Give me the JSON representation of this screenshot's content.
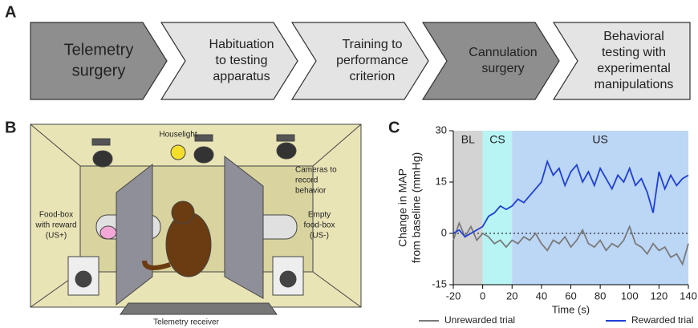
{
  "panel_a": {
    "label": "A",
    "steps": [
      {
        "lines": [
          "Telemetry",
          "surgery"
        ],
        "fill": "#8e8e8e"
      },
      {
        "lines": [
          "Habituation",
          "to testing",
          "apparatus"
        ],
        "fill": "#e4e4e4"
      },
      {
        "lines": [
          "Training to",
          "performance",
          "criterion"
        ],
        "fill": "#e4e4e4"
      },
      {
        "lines": [
          "Cannulation",
          "surgery"
        ],
        "fill": "#8e8e8e"
      },
      {
        "lines": [
          "Behavioral",
          "testing with",
          "experimental",
          "manipulations"
        ],
        "fill": "#e4e4e4"
      }
    ]
  },
  "panel_b": {
    "label": "B",
    "houselight": "Houselight",
    "cameras": [
      "Cameras to",
      "record",
      "behavior"
    ],
    "food_reward": [
      "Food-box",
      "with reward",
      "(US+)"
    ],
    "food_empty": [
      "Empty",
      "food-box",
      "(US-)"
    ],
    "receiver": "Telemetry receiver"
  },
  "panel_label_c": "C",
  "chart_data": {
    "type": "line",
    "y_label": [
      "Change in MAP",
      "from baseline (mmHg)"
    ],
    "x_label": "Time (s)",
    "xlim": [
      -20,
      140
    ],
    "xticks": [
      -20,
      0,
      20,
      40,
      60,
      80,
      100,
      120,
      140
    ],
    "ylim": [
      -15,
      30
    ],
    "yticks": [
      -15,
      0,
      15,
      30
    ],
    "zero_line": 0,
    "phases": [
      {
        "label": "BL",
        "start": -20,
        "end": 0,
        "color": "#d3d3d3"
      },
      {
        "label": "CS",
        "start": 0,
        "end": 20,
        "color": "#b8f4f4"
      },
      {
        "label": "US",
        "start": 20,
        "end": 140,
        "color": "#bcd6f5"
      }
    ],
    "x": [
      -20,
      -16,
      -12,
      -8,
      -4,
      0,
      4,
      8,
      12,
      16,
      20,
      24,
      28,
      32,
      36,
      40,
      44,
      48,
      52,
      56,
      60,
      64,
      68,
      72,
      76,
      80,
      84,
      88,
      92,
      96,
      100,
      104,
      108,
      112,
      116,
      120,
      124,
      128,
      132,
      136,
      140
    ],
    "series": [
      {
        "name": "Unrewarded trial",
        "color": "#7a7a7a",
        "values": [
          -2,
          3,
          -1,
          2,
          -2,
          0,
          -1,
          -3,
          -2,
          -4,
          -2,
          -3,
          -1,
          -2,
          0,
          -3,
          -5,
          -2,
          -3,
          -1,
          -4,
          -2,
          1,
          -3,
          -4,
          -2,
          -5,
          -3,
          -4,
          -2,
          2,
          -3,
          -4,
          -6,
          -3,
          -5,
          -4,
          -7,
          -6,
          -9,
          -3
        ]
      },
      {
        "name": "Rewarded trial",
        "color": "#1f3fd6",
        "values": [
          0,
          1,
          -1,
          0,
          1,
          2,
          5,
          6,
          8,
          7,
          8,
          10,
          9,
          11,
          13,
          15,
          21,
          17,
          19,
          14,
          18,
          20,
          15,
          18,
          14,
          19,
          16,
          13,
          17,
          15,
          19,
          14,
          16,
          12,
          6,
          18,
          13,
          17,
          14,
          16,
          17
        ]
      }
    ]
  }
}
